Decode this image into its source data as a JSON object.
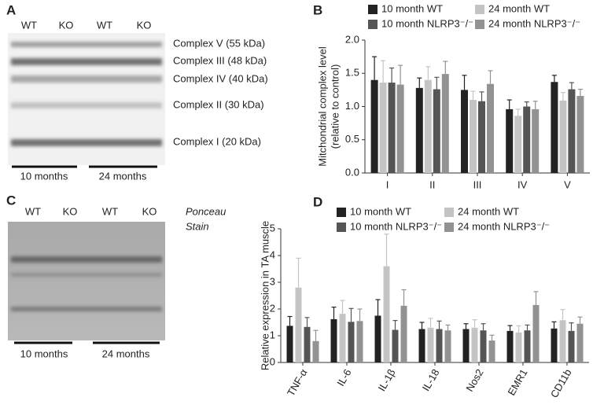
{
  "panels": {
    "a": {
      "label": "A",
      "lanes": [
        "WT",
        "KO",
        "WT",
        "KO"
      ],
      "bands": [
        "Complex V (55 kDa)",
        "Complex III (48 kDa)",
        "Complex IV (40 kDa)",
        "Complex II (30 kDa)",
        "Complex I (20 kDa)"
      ],
      "groups": [
        "10 months",
        "24 months"
      ]
    },
    "b": {
      "label": "B"
    },
    "c": {
      "label": "C",
      "lanes": [
        "WT",
        "KO",
        "WT",
        "KO"
      ],
      "stain": [
        "Ponceau",
        "Stain"
      ],
      "groups": [
        "10 months",
        "24 months"
      ]
    },
    "d": {
      "label": "D"
    }
  },
  "chart_data": [
    {
      "type": "bar",
      "ylabel": [
        "Mitchondrial complex level",
        "(relative to control)"
      ],
      "categories": [
        "I",
        "II",
        "III",
        "IV",
        "V"
      ],
      "series": [
        {
          "name": "10 month WT",
          "color": "#222222",
          "values": [
            1.4,
            1.28,
            1.25,
            0.96,
            1.37
          ],
          "errors": [
            0.35,
            0.15,
            0.22,
            0.14,
            0.1
          ]
        },
        {
          "name": "24 month WT",
          "color": "#c4c4c4",
          "values": [
            1.36,
            1.4,
            1.1,
            0.86,
            1.09
          ],
          "errors": [
            0.33,
            0.2,
            0.13,
            0.1,
            0.12
          ]
        },
        {
          "name": "10 month NLRP3⁻/⁻",
          "color": "#555555",
          "values": [
            1.36,
            1.26,
            1.08,
            1.0,
            1.26
          ],
          "errors": [
            0.22,
            0.18,
            0.14,
            0.07,
            0.1
          ]
        },
        {
          "name": "24 month NLRP3⁻/⁻",
          "color": "#929292",
          "values": [
            1.33,
            1.49,
            1.34,
            0.96,
            1.16
          ],
          "errors": [
            0.29,
            0.19,
            0.2,
            0.12,
            0.1
          ]
        }
      ],
      "ylim": [
        0,
        2
      ],
      "yticks": [
        {
          "value": 0,
          "label": "0.0"
        },
        0.5,
        {
          "value": 1,
          "label": "1.0"
        },
        1.5,
        {
          "value": 2,
          "label": "2.0"
        }
      ]
    },
    {
      "type": "bar",
      "ylabel": [
        "Relative expression in TA muscle"
      ],
      "categories": [
        "TNF-α",
        "IL-6",
        "IL-1β",
        "IL-18",
        "Nos2",
        "EMR1",
        "CD11b"
      ],
      "series": [
        {
          "name": "10 month WT",
          "color": "#222222",
          "values": [
            1.37,
            1.62,
            1.75,
            1.25,
            1.25,
            1.18,
            1.27
          ],
          "errors": [
            0.35,
            0.45,
            0.6,
            0.25,
            0.2,
            0.2,
            0.25
          ]
        },
        {
          "name": "24 month WT",
          "color": "#c4c4c4",
          "values": [
            2.8,
            1.82,
            3.6,
            1.3,
            1.3,
            1.12,
            1.58
          ],
          "errors": [
            1.1,
            0.5,
            1.2,
            0.35,
            0.3,
            0.25,
            0.4
          ]
        },
        {
          "name": "10 month NLRP3⁻/⁻",
          "color": "#555555",
          "values": [
            1.33,
            1.52,
            1.22,
            1.25,
            1.2,
            1.2,
            1.18
          ],
          "errors": [
            0.35,
            0.5,
            0.35,
            0.3,
            0.25,
            0.2,
            0.3
          ]
        },
        {
          "name": "24 month NLRP3⁻/⁻",
          "color": "#929292",
          "values": [
            0.8,
            1.55,
            2.12,
            1.2,
            0.82,
            2.15,
            1.45
          ],
          "errors": [
            0.4,
            0.45,
            0.6,
            0.2,
            0.2,
            0.5,
            0.25
          ]
        }
      ],
      "ylim": [
        0,
        5
      ],
      "yticks": [
        0,
        1,
        2,
        3,
        4,
        5
      ]
    }
  ]
}
